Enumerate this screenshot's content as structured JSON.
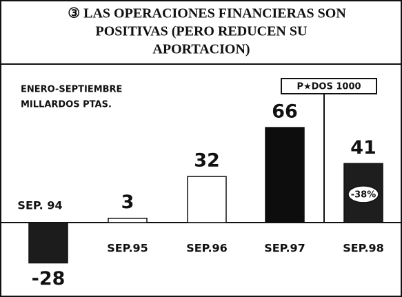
{
  "chart_data": {
    "type": "bar",
    "title": [
      "③ LAS OPERACIONES FINANCIERAS SON",
      "POSITIVAS (PERO REDUCEN SU",
      "APORTACION)"
    ],
    "subtitle": [
      "ENERO-SEPTIEMBRE",
      "MILLARDOS PTAS."
    ],
    "source": "P★DOS 1000",
    "categories": [
      "SEP. 94",
      "SEP.95",
      "SEP.96",
      "SEP.97",
      "SEP.98"
    ],
    "values": [
      -28,
      3,
      32,
      66,
      41
    ],
    "colors": [
      "#1c1c1c",
      "#ffffff",
      "#ffffff",
      "#0d0d0d",
      "#1e1e1e"
    ],
    "annotation": "-38%"
  }
}
